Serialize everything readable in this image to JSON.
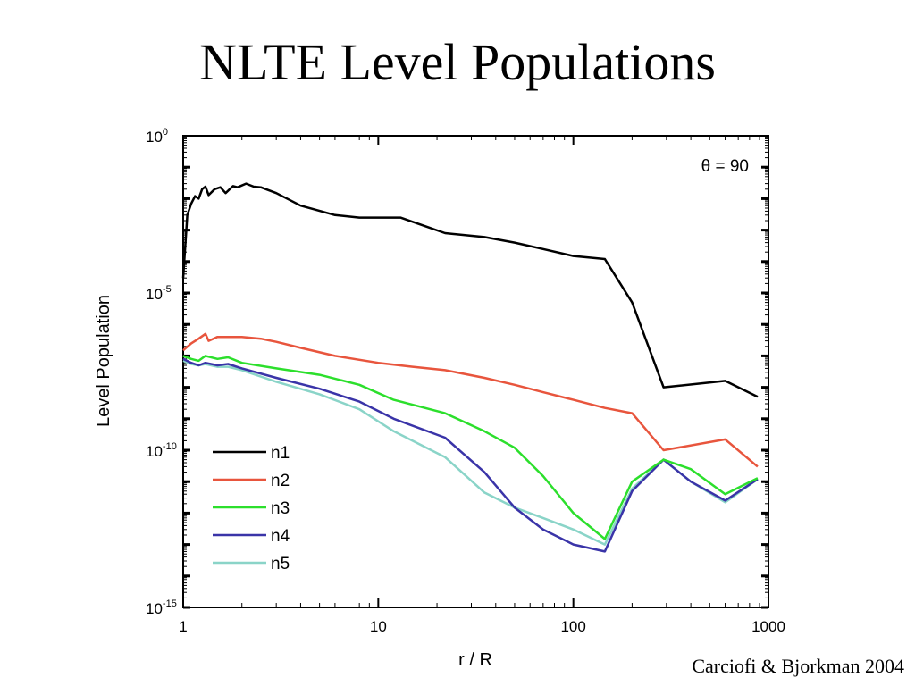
{
  "slide": {
    "title": "NLTE Level Populations",
    "citation": "Carciofi & Bjorkman 2004"
  },
  "chart_data": {
    "type": "line",
    "xlabel": "r / R",
    "ylabel": "Level Population",
    "xscale": "log",
    "yscale": "log",
    "xlim": [
      1,
      1000
    ],
    "ylim": [
      1e-15,
      1
    ],
    "xticks": [
      {
        "value": 1,
        "label": "1"
      },
      {
        "value": 10,
        "label": "10"
      },
      {
        "value": 100,
        "label": "100"
      },
      {
        "value": 1000,
        "label": "1000"
      }
    ],
    "yticks": [
      {
        "value": 1,
        "base": "10",
        "exp": "0"
      },
      {
        "value": 1e-05,
        "base": "10",
        "exp": "-5"
      },
      {
        "value": 1e-10,
        "base": "10",
        "exp": "-10"
      },
      {
        "value": 1e-15,
        "base": "10",
        "exp": "-15"
      }
    ],
    "annotation": "θ = 90",
    "legend_position": "bottom-left",
    "series": [
      {
        "name": "n1",
        "color": "#000000",
        "x": [
          1.0,
          1.05,
          1.1,
          1.15,
          1.2,
          1.25,
          1.3,
          1.35,
          1.45,
          1.55,
          1.65,
          1.8,
          1.9,
          2.1,
          2.3,
          2.5,
          3.0,
          4.0,
          6.0,
          8.0,
          10.0,
          13.0,
          22.0,
          35.0,
          50.0,
          70.0,
          100.0,
          145.0,
          200.0,
          290.0,
          600.0,
          880.0
        ],
        "y": [
          3e-05,
          0.003,
          0.007,
          0.012,
          0.01,
          0.02,
          0.024,
          0.013,
          0.02,
          0.023,
          0.015,
          0.025,
          0.023,
          0.03,
          0.024,
          0.023,
          0.015,
          0.006,
          0.003,
          0.0025,
          0.0025,
          0.0025,
          0.0008,
          0.0006,
          0.0004,
          0.00025,
          0.00015,
          0.00012,
          5e-06,
          1e-08,
          1.6e-08,
          5e-09
        ]
      },
      {
        "name": "n2",
        "color": "#e8553d",
        "x": [
          1.0,
          1.1,
          1.2,
          1.3,
          1.35,
          1.5,
          1.7,
          2.0,
          2.5,
          3.0,
          4.0,
          6.0,
          10.0,
          15.0,
          22.0,
          35.0,
          50.0,
          70.0,
          100.0,
          145.0,
          200.0,
          290.0,
          600.0,
          880.0
        ],
        "y": [
          1.5e-07,
          2.5e-07,
          3.5e-07,
          5e-07,
          3e-07,
          4e-07,
          4e-07,
          4e-07,
          3.5e-07,
          2.8e-07,
          1.8e-07,
          1e-07,
          6e-08,
          4.5e-08,
          3.5e-08,
          2e-08,
          1.2e-08,
          7e-09,
          4e-09,
          2.2e-09,
          1.5e-09,
          1e-10,
          2.2e-10,
          3e-11
        ]
      },
      {
        "name": "n3",
        "color": "#2cdf2c",
        "x": [
          1.0,
          1.1,
          1.2,
          1.3,
          1.5,
          1.7,
          2.0,
          3.0,
          5.0,
          8.0,
          12.0,
          22.0,
          35.0,
          50.0,
          70.0,
          100.0,
          145.0,
          200.0,
          290.0,
          400.0,
          600.0,
          880.0
        ],
        "y": [
          1e-07,
          8e-08,
          7e-08,
          1e-07,
          8e-08,
          9e-08,
          6e-08,
          4e-08,
          2.5e-08,
          1.2e-08,
          4e-09,
          1.5e-09,
          4e-10,
          1.2e-10,
          1.5e-11,
          1e-12,
          1.5e-13,
          1e-11,
          5e-11,
          2.5e-11,
          4e-12,
          1.3e-11
        ]
      },
      {
        "name": "n4",
        "color": "#3a34a8",
        "x": [
          1.0,
          1.1,
          1.2,
          1.3,
          1.5,
          1.7,
          2.0,
          3.0,
          5.0,
          8.0,
          12.0,
          22.0,
          35.0,
          50.0,
          70.0,
          100.0,
          145.0,
          200.0,
          290.0,
          400.0,
          600.0,
          880.0
        ],
        "y": [
          8e-08,
          6e-08,
          5e-08,
          6e-08,
          5e-08,
          5.5e-08,
          4e-08,
          2e-08,
          9e-09,
          3.5e-09,
          1e-09,
          2.5e-10,
          2e-11,
          1.5e-12,
          3e-13,
          1e-13,
          6e-14,
          5e-12,
          5e-11,
          1e-11,
          2.5e-12,
          1.2e-11
        ]
      },
      {
        "name": "n5",
        "color": "#8ad4c8",
        "x": [
          1.0,
          1.1,
          1.2,
          1.3,
          1.5,
          1.7,
          2.0,
          3.0,
          5.0,
          8.0,
          12.0,
          22.0,
          35.0,
          50.0,
          70.0,
          100.0,
          145.0,
          200.0,
          290.0,
          400.0,
          600.0,
          880.0
        ],
        "y": [
          7e-08,
          5.5e-08,
          5e-08,
          5.5e-08,
          4.5e-08,
          4.5e-08,
          3.5e-08,
          1.5e-08,
          6e-09,
          2e-09,
          4e-10,
          6e-11,
          4.5e-12,
          1.5e-12,
          7e-13,
          3e-13,
          1e-13,
          6e-12,
          5e-11,
          1e-11,
          2.2e-12,
          1.2e-11
        ]
      }
    ]
  }
}
